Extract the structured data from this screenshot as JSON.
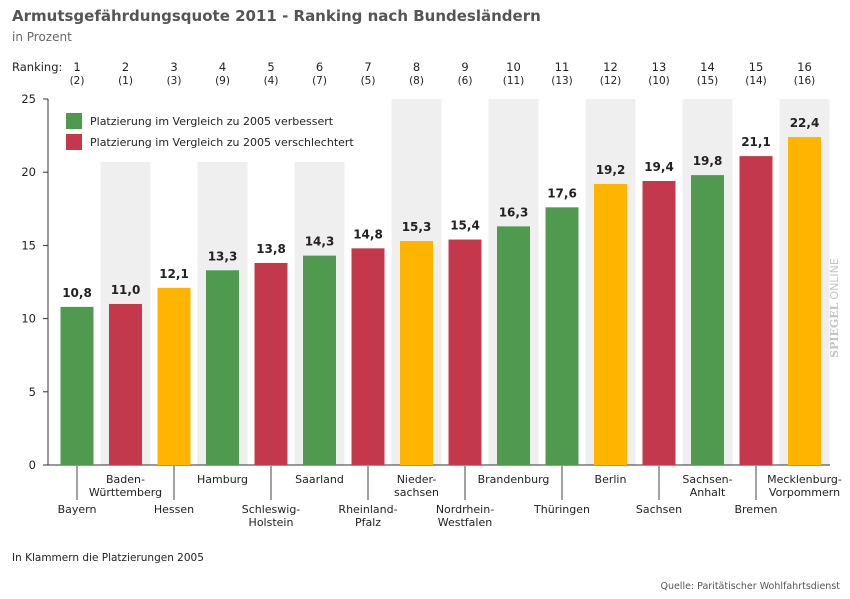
{
  "chart_data": {
    "type": "bar",
    "title": "Armutsgefährdungsquote 2011 - Ranking nach Bundesländern",
    "subtitle": "in Prozent",
    "xlabel": "",
    "ylabel": "",
    "ylim": [
      0,
      25
    ],
    "yticks": [
      0,
      5,
      10,
      15,
      20,
      25
    ],
    "grid": false,
    "ranking_label": "Ranking:",
    "legend_position": "top-left",
    "legend": [
      {
        "label": "Platzierung im Vergleich zu 2005 verbessert",
        "color": "#4f9a4f"
      },
      {
        "label": "Platzierung im Vergleich zu 2005 verschlechtert",
        "color": "#c3394b"
      }
    ],
    "bars": [
      {
        "rank": "1",
        "rank_2005": "(2)",
        "label_lines": [
          "Bayern"
        ],
        "value": 10.8,
        "value_label": "10,8",
        "color": "#4f9a4f"
      },
      {
        "rank": "2",
        "rank_2005": "(1)",
        "label_lines": [
          "Baden-",
          "Württemberg"
        ],
        "value": 11.0,
        "value_label": "11,0",
        "color": "#c3394b"
      },
      {
        "rank": "3",
        "rank_2005": "(3)",
        "label_lines": [
          "Hessen"
        ],
        "value": 12.1,
        "value_label": "12,1",
        "color": "#ffb400"
      },
      {
        "rank": "4",
        "rank_2005": "(9)",
        "label_lines": [
          "Hamburg"
        ],
        "value": 13.3,
        "value_label": "13,3",
        "color": "#4f9a4f"
      },
      {
        "rank": "5",
        "rank_2005": "(4)",
        "label_lines": [
          "Schleswig-",
          "Holstein"
        ],
        "value": 13.8,
        "value_label": "13,8",
        "color": "#c3394b"
      },
      {
        "rank": "6",
        "rank_2005": "(7)",
        "label_lines": [
          "Saarland"
        ],
        "value": 14.3,
        "value_label": "14,3",
        "color": "#4f9a4f"
      },
      {
        "rank": "7",
        "rank_2005": "(5)",
        "label_lines": [
          "Rheinland-",
          "Pfalz"
        ],
        "value": 14.8,
        "value_label": "14,8",
        "color": "#c3394b"
      },
      {
        "rank": "8",
        "rank_2005": "(8)",
        "label_lines": [
          "Nieder-",
          "sachsen"
        ],
        "value": 15.3,
        "value_label": "15,3",
        "color": "#ffb400"
      },
      {
        "rank": "9",
        "rank_2005": "(6)",
        "label_lines": [
          "Nordrhein-",
          "Westfalen"
        ],
        "value": 15.4,
        "value_label": "15,4",
        "color": "#c3394b"
      },
      {
        "rank": "10",
        "rank_2005": "(11)",
        "label_lines": [
          "Brandenburg"
        ],
        "value": 16.3,
        "value_label": "16,3",
        "color": "#4f9a4f"
      },
      {
        "rank": "11",
        "rank_2005": "(13)",
        "label_lines": [
          "Thüringen"
        ],
        "value": 17.6,
        "value_label": "17,6",
        "color": "#4f9a4f"
      },
      {
        "rank": "12",
        "rank_2005": "(12)",
        "label_lines": [
          "Berlin"
        ],
        "value": 19.2,
        "value_label": "19,2",
        "color": "#ffb400"
      },
      {
        "rank": "13",
        "rank_2005": "(10)",
        "label_lines": [
          "Sachsen"
        ],
        "value": 19.4,
        "value_label": "19,4",
        "color": "#c3394b"
      },
      {
        "rank": "14",
        "rank_2005": "(15)",
        "label_lines": [
          "Sachsen-",
          "Anhalt"
        ],
        "value": 19.8,
        "value_label": "19,8",
        "color": "#4f9a4f"
      },
      {
        "rank": "15",
        "rank_2005": "(14)",
        "label_lines": [
          "Bremen"
        ],
        "value": 21.1,
        "value_label": "21,1",
        "color": "#c3394b"
      },
      {
        "rank": "16",
        "rank_2005": "(16)",
        "label_lines": [
          "Mecklenburg-",
          "Vorpommern"
        ],
        "value": 22.4,
        "value_label": "22,4",
        "color": "#ffb400"
      }
    ]
  },
  "footnote": "In Klammern die Platzierungen 2005",
  "source": "Quelle: Paritätischer Wohlfahrtsdienst",
  "watermark": {
    "brand": "SPIEGEL",
    "suffix": "ONLINE"
  },
  "colors": {
    "stripe": "#efefef",
    "axis": "#333333",
    "leader": "#444444",
    "background": "#ffffff"
  }
}
